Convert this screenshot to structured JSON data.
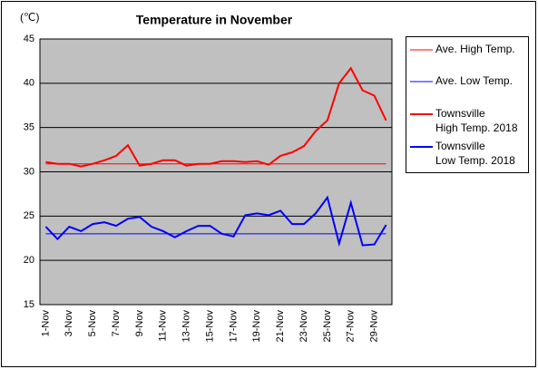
{
  "chart_data": {
    "type": "line",
    "title": "Temperature in November",
    "y_label": "(℃)",
    "categories": [
      "1-Nov",
      null,
      "3-Nov",
      null,
      "5-Nov",
      null,
      "7-Nov",
      null,
      "9-Nov",
      null,
      "11-Nov",
      null,
      "13-Nov",
      null,
      "15-Nov",
      null,
      "17-Nov",
      null,
      "19-Nov",
      null,
      "21-Nov",
      null,
      "23-Nov",
      null,
      "25-Nov",
      null,
      "27-Nov",
      null,
      "29-Nov",
      null
    ],
    "series": [
      {
        "name": "Ave. High Temp.",
        "color": "#ff0000",
        "width": 1,
        "values": [
          30.9,
          30.9,
          30.9,
          30.9,
          30.9,
          30.9,
          30.9,
          30.9,
          30.9,
          30.9,
          30.9,
          30.9,
          30.9,
          30.9,
          30.9,
          30.9,
          30.9,
          30.9,
          30.9,
          30.9,
          30.9,
          30.9,
          30.9,
          30.9,
          30.9,
          30.9,
          30.9,
          30.9,
          30.9,
          30.9
        ]
      },
      {
        "name": "Ave. Low Temp.",
        "color": "#0000ff",
        "width": 1,
        "values": [
          23.0,
          23.0,
          23.0,
          23.0,
          23.0,
          23.0,
          23.0,
          23.0,
          23.0,
          23.0,
          23.0,
          23.0,
          23.0,
          23.0,
          23.0,
          23.0,
          23.0,
          23.0,
          23.0,
          23.0,
          23.0,
          23.0,
          23.0,
          23.0,
          23.0,
          23.0,
          23.0,
          23.0,
          23.0,
          23.0
        ]
      },
      {
        "name": "Townsville\nHigh Temp. 2018",
        "color": "#ff0000",
        "width": 2,
        "values": [
          31.1,
          30.9,
          30.9,
          30.6,
          30.9,
          31.3,
          31.8,
          33.0,
          30.7,
          30.9,
          31.3,
          31.3,
          30.7,
          30.9,
          30.9,
          31.2,
          31.2,
          31.1,
          31.2,
          30.8,
          31.8,
          32.2,
          32.9,
          34.6,
          35.8,
          40.0,
          41.7,
          39.2,
          38.6,
          35.8
        ]
      },
      {
        "name": "Townsville\nLow Temp. 2018",
        "color": "#0000ff",
        "width": 2,
        "values": [
          23.8,
          22.4,
          23.8,
          23.3,
          24.1,
          24.3,
          23.9,
          24.7,
          24.9,
          23.8,
          23.3,
          22.6,
          23.3,
          23.9,
          23.9,
          23.0,
          22.7,
          25.1,
          25.3,
          25.1,
          25.6,
          24.1,
          24.1,
          25.3,
          27.1,
          21.9,
          26.5,
          21.7,
          21.8,
          24.0
        ]
      }
    ],
    "ylim": [
      15,
      45
    ],
    "yticks": [
      15,
      20,
      25,
      30,
      35,
      40,
      45
    ],
    "grid": true,
    "plot_background": "#c0c0c0",
    "legend": "right"
  }
}
